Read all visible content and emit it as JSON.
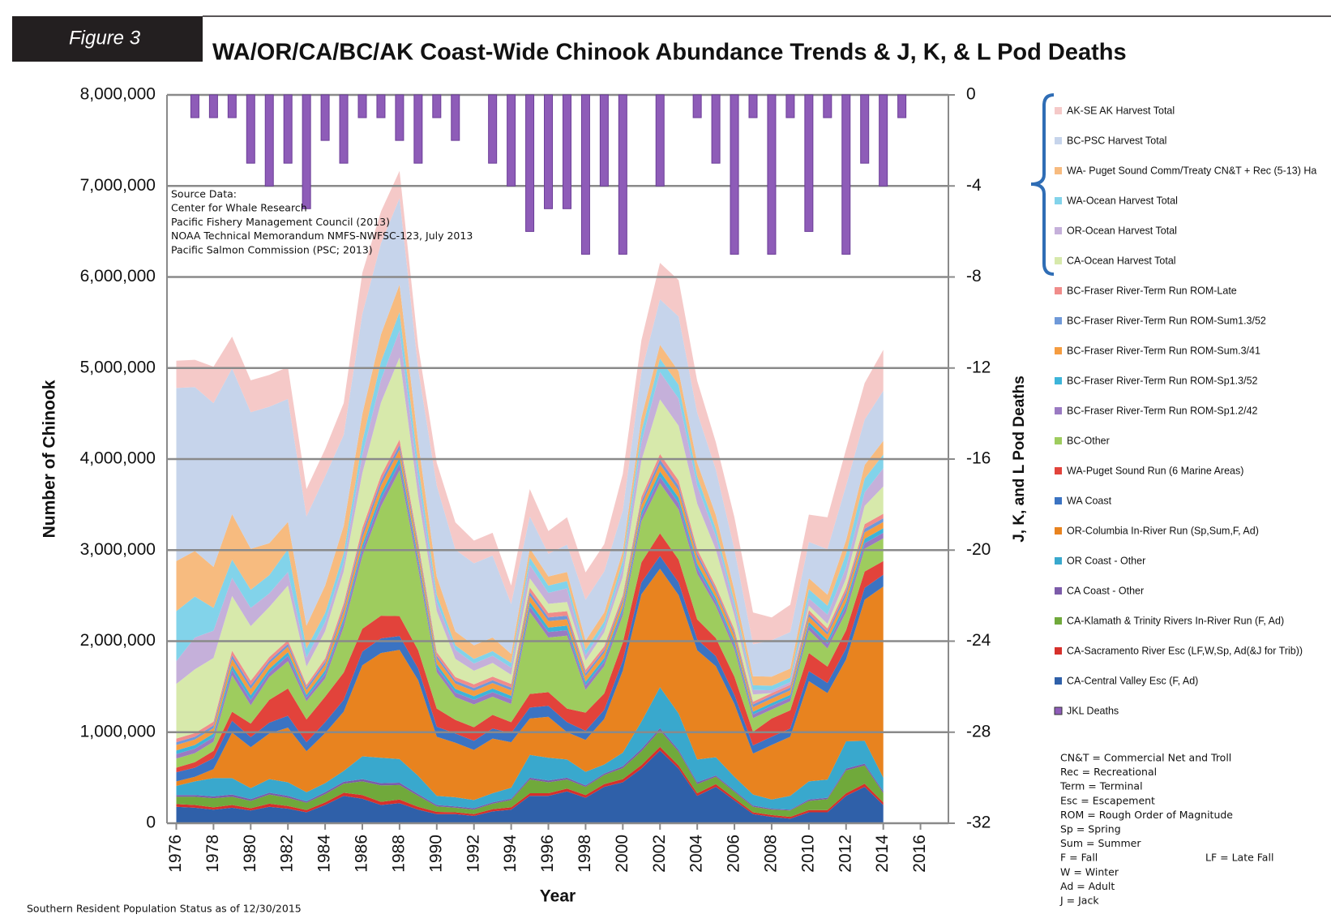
{
  "figure_label": "Figure 3",
  "chart_data": {
    "type": "area",
    "title": "WA/OR/CA/BC/AK Coast-Wide Chinook Abundance Trends & J, K, & L Pod Deaths",
    "x_label": "Year",
    "y_label": "Number of Chinook",
    "y2_label": "J, K, and L Pod Deaths",
    "x": [
      1976,
      1977,
      1978,
      1979,
      1980,
      1981,
      1982,
      1983,
      1984,
      1985,
      1986,
      1987,
      1988,
      1989,
      1990,
      1991,
      1992,
      1993,
      1994,
      1995,
      1996,
      1997,
      1998,
      1999,
      2000,
      2001,
      2002,
      2003,
      2004,
      2005,
      2006,
      2007,
      2008,
      2009,
      2010,
      2011,
      2012,
      2013,
      2014,
      2015
    ],
    "xlim": [
      1975.5,
      2017.5
    ],
    "xticks": [
      1976,
      1978,
      1980,
      1982,
      1984,
      1986,
      1988,
      1990,
      1992,
      1994,
      1996,
      1998,
      2000,
      2002,
      2004,
      2006,
      2008,
      2010,
      2012,
      2014,
      2016
    ],
    "ylim": [
      0,
      8000000
    ],
    "yticks": [
      0,
      {
        "value": 1000000,
        "label": "1,000,000"
      },
      {
        "value": 2000000,
        "label": "2,000,000"
      },
      {
        "value": 3000000,
        "label": "3,000,000"
      },
      {
        "value": 4000000,
        "label": "4,000,000"
      },
      {
        "value": 5000000,
        "label": "5,000,000"
      },
      {
        "value": 6000000,
        "label": "6,000,000"
      },
      {
        "value": 7000000,
        "label": "7,000,000"
      },
      {
        "value": 8000000,
        "label": "8,000,000"
      }
    ],
    "y2lim": [
      -32,
      0
    ],
    "y2ticks": [
      0,
      -4,
      -8,
      -12,
      -16,
      -20,
      -24,
      -28,
      -32
    ],
    "grid": true,
    "stacked": true,
    "series": [
      {
        "name": "AK-SE AK Harvest Total",
        "color": "#f5c9c8",
        "values": [
          300000,
          300000,
          400000,
          350000,
          350000,
          350000,
          350000,
          300000,
          300000,
          350000,
          450000,
          350000,
          300000,
          250000,
          250000,
          300000,
          250000,
          250000,
          200000,
          300000,
          250000,
          300000,
          300000,
          300000,
          400000,
          350000,
          400000,
          400000,
          350000,
          300000,
          350000,
          350000,
          250000,
          300000,
          300000,
          350000,
          400000,
          400000,
          450000,
          null
        ]
      },
      {
        "name": "BC-PSC Harvest Total",
        "color": "#c6d4eb",
        "values": [
          1900000,
          1800000,
          1800000,
          1600000,
          1500000,
          1500000,
          1350000,
          1200000,
          1200000,
          1000000,
          1100000,
          1000000,
          950000,
          800000,
          1000000,
          900000,
          900000,
          900000,
          550000,
          350000,
          250000,
          300000,
          450000,
          450000,
          450000,
          500000,
          500000,
          600000,
          550000,
          500000,
          450000,
          350000,
          400000,
          400000,
          400000,
          500000,
          600000,
          500000,
          550000,
          null
        ]
      },
      {
        "name": "WA- Puget Sound Comm/Treaty CN&T + Rec (5-13) Ha",
        "color": "#f7bb7f",
        "values": [
          550000,
          500000,
          450000,
          500000,
          450000,
          350000,
          300000,
          250000,
          300000,
          300000,
          300000,
          300000,
          300000,
          250000,
          200000,
          150000,
          150000,
          150000,
          100000,
          100000,
          100000,
          100000,
          100000,
          100000,
          100000,
          150000,
          150000,
          150000,
          150000,
          150000,
          120000,
          100000,
          100000,
          100000,
          120000,
          120000,
          150000,
          150000,
          150000,
          null
        ]
      },
      {
        "name": "WA-Ocean Harvest Total",
        "color": "#82d3ea",
        "values": [
          550000,
          450000,
          250000,
          200000,
          200000,
          200000,
          250000,
          100000,
          100000,
          100000,
          150000,
          200000,
          200000,
          150000,
          80000,
          50000,
          50000,
          50000,
          50000,
          80000,
          80000,
          80000,
          60000,
          60000,
          80000,
          120000,
          150000,
          150000,
          100000,
          80000,
          60000,
          50000,
          50000,
          50000,
          100000,
          100000,
          150000,
          150000,
          150000,
          null
        ]
      },
      {
        "name": "OR-Ocean Harvest Total",
        "color": "#c5b0da",
        "values": [
          250000,
          350000,
          300000,
          200000,
          200000,
          150000,
          150000,
          100000,
          100000,
          100000,
          200000,
          250000,
          300000,
          200000,
          100000,
          100000,
          80000,
          80000,
          80000,
          150000,
          120000,
          150000,
          60000,
          60000,
          100000,
          200000,
          300000,
          300000,
          200000,
          150000,
          100000,
          50000,
          30000,
          30000,
          80000,
          100000,
          120000,
          150000,
          200000,
          null
        ]
      },
      {
        "name": "CA-Ocean Harvest Total",
        "color": "#d7e9ab",
        "values": [
          600000,
          700000,
          700000,
          600000,
          600000,
          550000,
          600000,
          200000,
          300000,
          350000,
          600000,
          800000,
          900000,
          500000,
          450000,
          200000,
          150000,
          150000,
          100000,
          100000,
          100000,
          100000,
          100000,
          150000,
          200000,
          400000,
          600000,
          600000,
          500000,
          400000,
          150000,
          80000,
          0,
          0,
          50000,
          50000,
          100000,
          200000,
          300000,
          null
        ]
      },
      {
        "name": "BC-Fraser River-Term Run ROM-Late",
        "color": "#f08c8a",
        "values": [
          40000,
          40000,
          40000,
          50000,
          50000,
          40000,
          40000,
          30000,
          40000,
          50000,
          60000,
          60000,
          60000,
          50000,
          40000,
          40000,
          40000,
          40000,
          40000,
          50000,
          50000,
          50000,
          40000,
          40000,
          40000,
          50000,
          60000,
          60000,
          50000,
          40000,
          40000,
          30000,
          30000,
          30000,
          40000,
          40000,
          50000,
          50000,
          50000,
          null
        ]
      },
      {
        "name": "BC-Fraser River-Term Run ROM-Sum1.3/52",
        "color": "#6f99d8",
        "values": [
          30000,
          30000,
          30000,
          40000,
          40000,
          30000,
          30000,
          30000,
          30000,
          40000,
          50000,
          50000,
          50000,
          40000,
          30000,
          30000,
          30000,
          30000,
          30000,
          40000,
          40000,
          40000,
          30000,
          30000,
          30000,
          40000,
          50000,
          50000,
          40000,
          30000,
          30000,
          30000,
          30000,
          30000,
          30000,
          30000,
          40000,
          40000,
          40000,
          null
        ]
      },
      {
        "name": "BC-Fraser River-Term Run ROM-Sum.3/41",
        "color": "#f59c40",
        "values": [
          60000,
          60000,
          60000,
          70000,
          70000,
          60000,
          60000,
          50000,
          60000,
          70000,
          80000,
          90000,
          90000,
          80000,
          60000,
          60000,
          60000,
          60000,
          60000,
          70000,
          70000,
          70000,
          60000,
          60000,
          60000,
          70000,
          80000,
          80000,
          70000,
          60000,
          60000,
          50000,
          50000,
          50000,
          60000,
          60000,
          70000,
          70000,
          70000,
          null
        ]
      },
      {
        "name": "BC-Fraser River-Term Run ROM-Sp1.3/52",
        "color": "#3db4d9",
        "values": [
          40000,
          40000,
          40000,
          50000,
          50000,
          40000,
          40000,
          30000,
          40000,
          40000,
          50000,
          60000,
          60000,
          50000,
          40000,
          40000,
          40000,
          40000,
          40000,
          50000,
          50000,
          50000,
          40000,
          40000,
          40000,
          50000,
          60000,
          60000,
          50000,
          40000,
          40000,
          30000,
          30000,
          30000,
          40000,
          40000,
          50000,
          50000,
          50000,
          null
        ]
      },
      {
        "name": "BC-Fraser River-Term Run ROM-Sp1.2/42",
        "color": "#9a7ac2",
        "values": [
          50000,
          50000,
          50000,
          60000,
          60000,
          50000,
          60000,
          40000,
          50000,
          60000,
          70000,
          80000,
          80000,
          70000,
          50000,
          50000,
          50000,
          50000,
          50000,
          60000,
          60000,
          60000,
          50000,
          50000,
          50000,
          60000,
          70000,
          70000,
          60000,
          50000,
          50000,
          40000,
          40000,
          40000,
          50000,
          50000,
          60000,
          60000,
          60000,
          null
        ]
      },
      {
        "name": "BC-Other",
        "color": "#9ecc5e",
        "values": [
          100000,
          100000,
          100000,
          400000,
          200000,
          250000,
          300000,
          200000,
          200000,
          500000,
          800000,
          1200000,
          1600000,
          900000,
          400000,
          250000,
          250000,
          200000,
          200000,
          900000,
          600000,
          800000,
          250000,
          300000,
          300000,
          450000,
          550000,
          550000,
          500000,
          350000,
          300000,
          150000,
          100000,
          100000,
          250000,
          200000,
          200000,
          250000,
          250000,
          null
        ]
      },
      {
        "name": "WA-Puget Sound Run (6 Marine Areas)",
        "color": "#e2433b",
        "values": [
          50000,
          60000,
          80000,
          100000,
          150000,
          250000,
          300000,
          250000,
          280000,
          300000,
          250000,
          250000,
          220000,
          200000,
          200000,
          150000,
          150000,
          150000,
          120000,
          150000,
          150000,
          150000,
          200000,
          180000,
          200000,
          220000,
          250000,
          250000,
          220000,
          200000,
          200000,
          150000,
          200000,
          200000,
          200000,
          180000,
          200000,
          180000,
          150000,
          null
        ]
      },
      {
        "name": "WA Coast",
        "color": "#3b73c2",
        "values": [
          100000,
          100000,
          120000,
          130000,
          110000,
          120000,
          130000,
          100000,
          120000,
          130000,
          150000,
          160000,
          150000,
          130000,
          110000,
          100000,
          100000,
          110000,
          100000,
          120000,
          120000,
          110000,
          100000,
          100000,
          110000,
          130000,
          140000,
          140000,
          120000,
          110000,
          100000,
          90000,
          90000,
          90000,
          110000,
          110000,
          120000,
          130000,
          130000,
          null
        ]
      },
      {
        "name": "OR-Columbia In-River Run (Sp,Sum,F, Ad)",
        "color": "#e8831f",
        "values": [
          50000,
          50000,
          100000,
          500000,
          450000,
          500000,
          600000,
          450000,
          550000,
          650000,
          1000000,
          1150000,
          1200000,
          1050000,
          650000,
          600000,
          550000,
          600000,
          500000,
          400000,
          450000,
          300000,
          350000,
          500000,
          900000,
          1400000,
          1300000,
          1300000,
          1200000,
          1000000,
          800000,
          450000,
          600000,
          650000,
          1100000,
          950000,
          900000,
          1550000,
          2100000,
          null
        ]
      },
      {
        "name": "OR Coast - Other",
        "color": "#39a8cd",
        "values": [
          100000,
          150000,
          200000,
          180000,
          120000,
          150000,
          150000,
          100000,
          100000,
          120000,
          250000,
          280000,
          260000,
          200000,
          100000,
          100000,
          90000,
          100000,
          120000,
          250000,
          250000,
          200000,
          150000,
          100000,
          150000,
          300000,
          450000,
          400000,
          250000,
          200000,
          150000,
          120000,
          100000,
          150000,
          200000,
          200000,
          300000,
          250000,
          150000,
          null
        ]
      },
      {
        "name": "CA Coast - Other",
        "color": "#7c5ba9",
        "values": [
          20000,
          20000,
          20000,
          25000,
          20000,
          20000,
          20000,
          15000,
          20000,
          20000,
          25000,
          25000,
          25000,
          20000,
          15000,
          15000,
          15000,
          15000,
          15000,
          20000,
          20000,
          20000,
          15000,
          15000,
          20000,
          25000,
          25000,
          20000,
          20000,
          15000,
          15000,
          15000,
          10000,
          10000,
          15000,
          15000,
          20000,
          20000,
          20000,
          null
        ]
      },
      {
        "name": "CA-Klamath & Trinity Rivers In-River Run (F, Ad)",
        "color": "#70a93b",
        "values": [
          80000,
          90000,
          100000,
          90000,
          80000,
          100000,
          90000,
          80000,
          90000,
          100000,
          150000,
          180000,
          160000,
          120000,
          60000,
          50000,
          50000,
          60000,
          80000,
          150000,
          120000,
          100000,
          90000,
          100000,
          120000,
          150000,
          180000,
          150000,
          100000,
          80000,
          70000,
          60000,
          60000,
          70000,
          100000,
          120000,
          250000,
          200000,
          100000,
          null
        ]
      },
      {
        "name": "CA-Sacramento River Esc (LF,W,Sp, Ad(&J for Trib))",
        "color": "#d6302b",
        "values": [
          30000,
          30000,
          25000,
          30000,
          25000,
          35000,
          30000,
          25000,
          30000,
          35000,
          40000,
          35000,
          40000,
          30000,
          25000,
          20000,
          20000,
          25000,
          25000,
          30000,
          30000,
          30000,
          30000,
          30000,
          35000,
          40000,
          40000,
          35000,
          30000,
          30000,
          25000,
          20000,
          20000,
          20000,
          25000,
          25000,
          30000,
          35000,
          30000,
          null
        ]
      },
      {
        "name": "CA-Central Valley Esc (F, Ad)",
        "color": "#2f60a9",
        "values": [
          180000,
          170000,
          150000,
          170000,
          140000,
          180000,
          160000,
          120000,
          200000,
          300000,
          270000,
          200000,
          220000,
          150000,
          100000,
          100000,
          80000,
          130000,
          150000,
          300000,
          300000,
          350000,
          280000,
          400000,
          450000,
          600000,
          800000,
          600000,
          300000,
          400000,
          250000,
          100000,
          70000,
          50000,
          120000,
          120000,
          300000,
          400000,
          200000,
          null
        ]
      },
      {
        "name": "JKL Deaths",
        "color": "#8e5cb8",
        "type": "bar",
        "axis": "y2",
        "values": [
          0,
          -1,
          -1,
          -1,
          -3,
          -4,
          -3,
          -5,
          -2,
          -3,
          -1,
          -1,
          -2,
          -3,
          -1,
          -2,
          0,
          -3,
          -4,
          -6,
          -5,
          -5,
          -7,
          -4,
          -7,
          0,
          -4,
          0,
          -1,
          -3,
          -7,
          -1,
          -7,
          -1,
          -6,
          -1,
          -7,
          -3,
          -4,
          -1
        ]
      }
    ],
    "source_notes": [
      "Source Data:",
      "Center for Whale Research",
      "Pacific Fishery Management Council (2013)",
      "NOAA Technical Memorandum NMFS-NWFSC-123, July 2013",
      "Pacific Salmon Commission (PSC; 2013)"
    ],
    "abbreviations": [
      "CN&T = Commercial Net and Troll",
      "Rec = Recreational",
      "Term = Terminal",
      "Esc = Escapement",
      "ROM = Rough Order of Magnitude",
      "Sp = Spring",
      "Sum = Summer",
      "F = Fall",
      "W = Winter",
      "Ad = Adult",
      "J = Jack"
    ],
    "abbreviation_extra": "LF = Late Fall",
    "footer": "Southern Resident Population Status as of 12/30/2015"
  }
}
